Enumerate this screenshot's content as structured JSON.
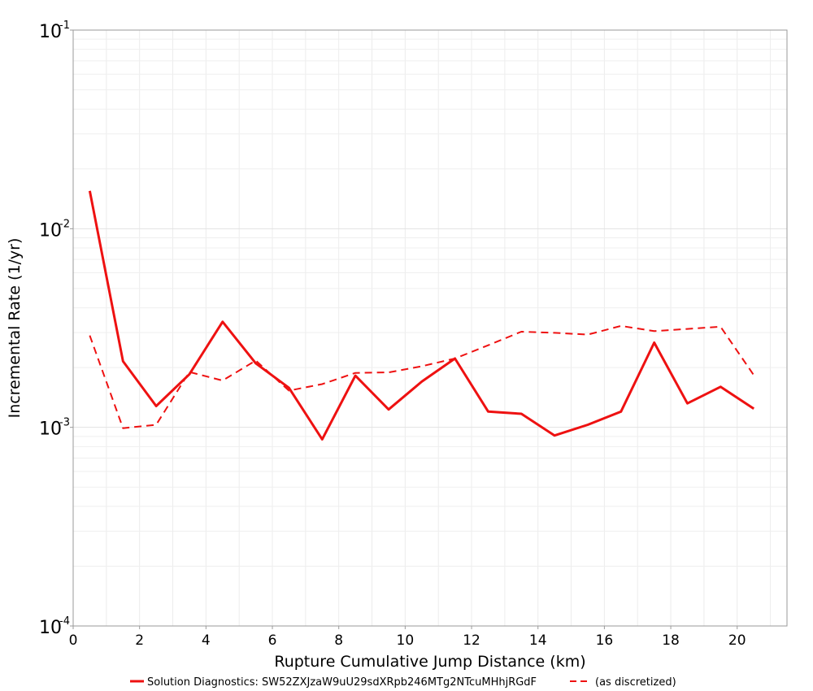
{
  "chart_data": {
    "type": "line",
    "xlabel": "Rupture Cumulative Jump Distance (km)",
    "ylabel": "Incremental Rate (1/yr)",
    "xlim": [
      0,
      21.5
    ],
    "ylim": [
      0.0001,
      0.1
    ],
    "y_scale": "log",
    "grid": true,
    "legend_position": "bottom",
    "x_ticks": [
      "0",
      "2",
      "4",
      "6",
      "8",
      "10",
      "12",
      "14",
      "16",
      "18",
      "20"
    ],
    "y_ticks": [
      {
        "base": "10",
        "exp": "-4",
        "value": 0.0001
      },
      {
        "base": "10",
        "exp": "-3",
        "value": 0.001
      },
      {
        "base": "10",
        "exp": "-2",
        "value": 0.01
      },
      {
        "base": "10",
        "exp": "-1",
        "value": 0.1
      }
    ],
    "series": [
      {
        "name": "Solution Diagnostics: SW52ZXJzaW9uU29sdXRpb246MTg2NTcuMHhjRGdF",
        "style": "solid",
        "color": "#ee1111",
        "x": [
          0.5,
          1.5,
          2.5,
          3.5,
          4.5,
          5.5,
          6.5,
          7.5,
          8.5,
          9.5,
          10.5,
          11.5,
          12.5,
          13.5,
          14.5,
          15.5,
          16.5,
          17.5,
          18.5,
          19.5,
          20.5
        ],
        "y": [
          0.0155,
          0.00215,
          0.00128,
          0.00185,
          0.0034,
          0.0021,
          0.00158,
          0.00087,
          0.00182,
          0.00123,
          0.0017,
          0.00222,
          0.0012,
          0.00117,
          0.00091,
          0.00103,
          0.0012,
          0.00267,
          0.00132,
          0.0016,
          0.00124
        ]
      },
      {
        "name": "(as discretized)",
        "style": "dashed",
        "color": "#ee1111",
        "x": [
          0.5,
          1.5,
          2.5,
          3.5,
          4.5,
          5.5,
          6.5,
          7.5,
          8.5,
          9.5,
          10.5,
          11.5,
          12.5,
          13.5,
          14.5,
          15.5,
          16.5,
          17.5,
          18.5,
          19.5,
          20.5
        ],
        "y": [
          0.0029,
          0.00099,
          0.00103,
          0.0019,
          0.00172,
          0.00217,
          0.00153,
          0.00165,
          0.00188,
          0.00189,
          0.00203,
          0.00222,
          0.00259,
          0.00303,
          0.00299,
          0.00293,
          0.00324,
          0.00305,
          0.00313,
          0.00321,
          0.00183
        ]
      }
    ]
  }
}
